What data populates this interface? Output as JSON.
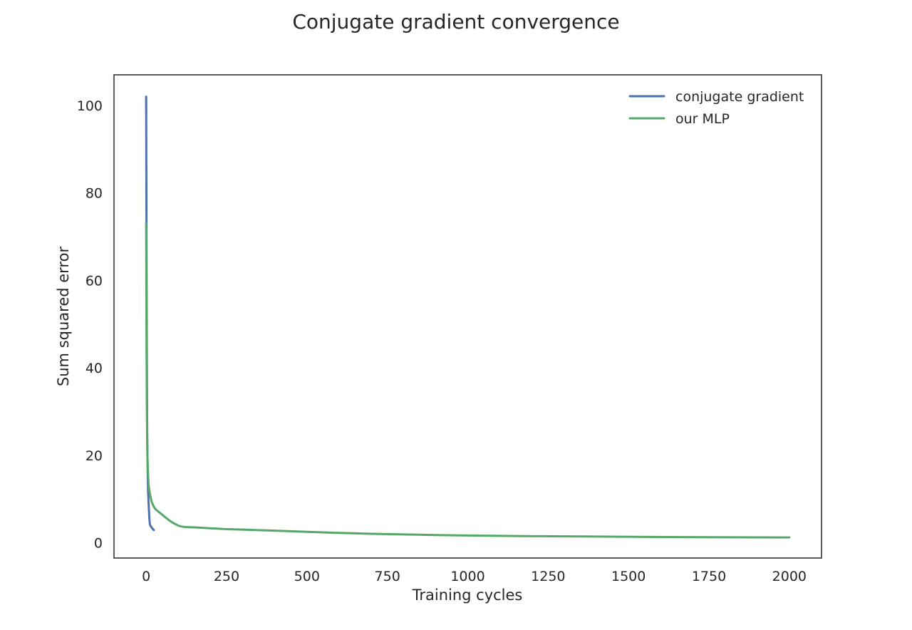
{
  "chart_data": {
    "type": "line",
    "title": "Conjugate gradient convergence",
    "xlabel": "Training cycles",
    "ylabel": "Sum squared error",
    "xlim": [
      -100,
      2100
    ],
    "ylim": [
      -3.5,
      107
    ],
    "xticks": [
      0,
      250,
      500,
      750,
      1000,
      1250,
      1500,
      1750,
      2000
    ],
    "yticks": [
      0,
      20,
      40,
      60,
      80,
      100
    ],
    "grid": false,
    "legend_position": "upper right",
    "series": [
      {
        "name": "conjugate gradient",
        "color": "#4c72b0",
        "x": [
          0,
          1,
          2,
          3,
          4,
          5,
          6,
          7,
          8,
          9,
          10,
          11,
          12,
          14,
          16,
          18,
          20,
          22,
          24
        ],
        "y": [
          102,
          72,
          45,
          28,
          20,
          15,
          12,
          10,
          8.5,
          7,
          5.5,
          4.6,
          4.1,
          3.8,
          3.6,
          3.4,
          3.2,
          3.0,
          2.9
        ]
      },
      {
        "name": "our MLP",
        "color": "#55a868",
        "x": [
          0,
          1,
          2,
          3,
          4,
          5,
          6,
          7,
          8,
          10,
          12,
          15,
          18,
          22,
          26,
          30,
          40,
          50,
          60,
          70,
          80,
          90,
          100,
          110,
          120,
          150,
          200,
          250,
          300,
          400,
          500,
          600,
          700,
          800,
          900,
          1000,
          1200,
          1400,
          1600,
          1800,
          2000
        ],
        "y": [
          73,
          50,
          33,
          25,
          20,
          17,
          15.5,
          14,
          13,
          12,
          11,
          10,
          9.2,
          8.5,
          8.0,
          7.6,
          7.0,
          6.4,
          5.8,
          5.2,
          4.7,
          4.3,
          3.9,
          3.7,
          3.6,
          3.5,
          3.3,
          3.1,
          3.0,
          2.75,
          2.5,
          2.25,
          2.05,
          1.9,
          1.75,
          1.65,
          1.5,
          1.4,
          1.3,
          1.25,
          1.2
        ]
      }
    ]
  }
}
